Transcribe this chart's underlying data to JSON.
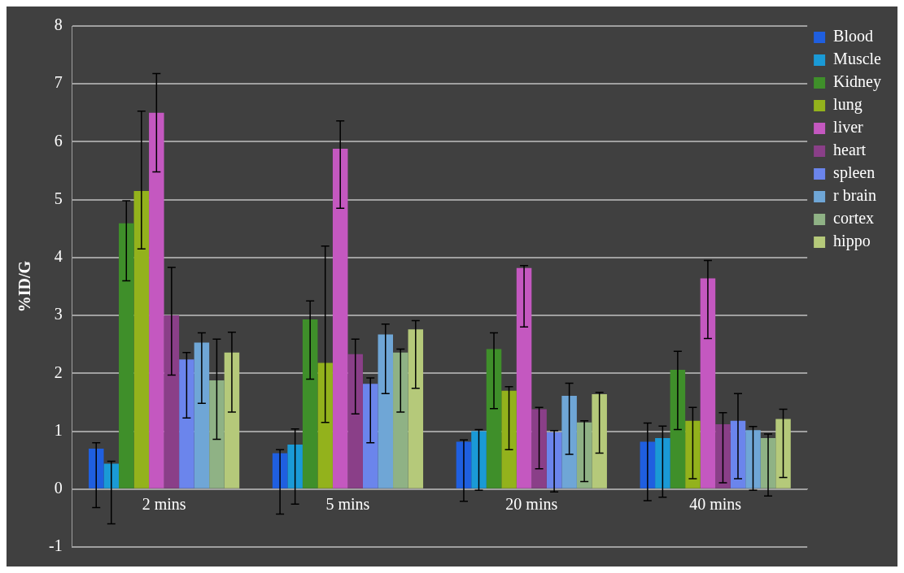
{
  "chart_data": {
    "type": "bar",
    "ylabel": "%ID/G",
    "categories": [
      "2 mins",
      "5 mins",
      "20 mins",
      "40 mins"
    ],
    "series": [
      {
        "name": "Blood",
        "color": "#1f5fe0",
        "values": [
          0.7,
          0.62,
          0.82,
          0.82
        ],
        "errors": [
          [
            -0.32,
            0.8
          ],
          [
            -0.43,
            0.68
          ],
          [
            -0.21,
            0.85
          ],
          [
            -0.2,
            1.14
          ]
        ]
      },
      {
        "name": "Muscle",
        "color": "#1a9ad6",
        "values": [
          0.44,
          0.77,
          1.0,
          0.88
        ],
        "errors": [
          [
            -0.6,
            0.48
          ],
          [
            -0.26,
            1.04
          ],
          [
            -0.02,
            1.03
          ],
          [
            -0.14,
            1.09
          ]
        ]
      },
      {
        "name": "Kidney",
        "color": "#3f8f2a",
        "values": [
          4.59,
          2.93,
          2.42,
          2.06
        ],
        "errors": [
          [
            3.6,
            4.98
          ],
          [
            1.9,
            3.25
          ],
          [
            1.39,
            2.7
          ],
          [
            1.03,
            2.38
          ]
        ]
      },
      {
        "name": "lung",
        "color": "#93b21c",
        "values": [
          5.15,
          2.18,
          1.7,
          1.18
        ],
        "errors": [
          [
            4.15,
            6.53
          ],
          [
            1.15,
            4.2
          ],
          [
            0.68,
            1.77
          ],
          [
            0.18,
            1.41
          ]
        ]
      },
      {
        "name": "liver",
        "color": "#c458c0",
        "values": [
          6.5,
          5.88,
          3.82,
          3.64
        ],
        "errors": [
          [
            5.48,
            7.18
          ],
          [
            4.85,
            6.36
          ],
          [
            2.8,
            3.86
          ],
          [
            2.6,
            3.95
          ]
        ]
      },
      {
        "name": "heart",
        "color": "#8a3f88",
        "values": [
          3.0,
          2.33,
          1.38,
          1.12
        ],
        "errors": [
          [
            1.97,
            3.83
          ],
          [
            1.3,
            2.59
          ],
          [
            0.35,
            1.41
          ],
          [
            0.11,
            1.32
          ]
        ]
      },
      {
        "name": "spleen",
        "color": "#6b85ec",
        "values": [
          2.24,
          1.82,
          0.98,
          1.18
        ],
        "errors": [
          [
            1.23,
            2.36
          ],
          [
            0.8,
            1.92
          ],
          [
            -0.05,
            1.01
          ],
          [
            0.18,
            1.65
          ]
        ]
      },
      {
        "name": "r brain",
        "color": "#6fa6d6",
        "values": [
          2.53,
          2.67,
          1.61,
          1.02
        ],
        "errors": [
          [
            1.48,
            2.7
          ],
          [
            1.65,
            2.85
          ],
          [
            0.6,
            1.83
          ],
          [
            -0.02,
            1.08
          ]
        ]
      },
      {
        "name": "cortex",
        "color": "#8fb285",
        "values": [
          1.88,
          2.36,
          1.15,
          0.88
        ],
        "errors": [
          [
            0.86,
            2.59
          ],
          [
            1.33,
            2.42
          ],
          [
            0.13,
            1.18
          ],
          [
            -0.12,
            0.95
          ]
        ]
      },
      {
        "name": "hippo",
        "color": "#b5c97a",
        "values": [
          2.36,
          2.76,
          1.64,
          1.21
        ],
        "errors": [
          [
            1.33,
            2.71
          ],
          [
            1.74,
            2.91
          ],
          [
            0.62,
            1.67
          ],
          [
            0.2,
            1.38
          ]
        ]
      }
    ],
    "ylim": [
      -1,
      8
    ],
    "yticks": [
      -1,
      0,
      1,
      2,
      3,
      4,
      5,
      6,
      7,
      8
    ],
    "grid": "y",
    "legend": "top right"
  }
}
